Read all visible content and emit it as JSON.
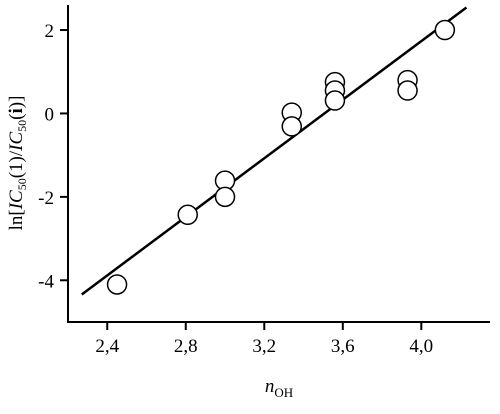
{
  "chart_data": {
    "type": "scatter",
    "x_label_parts": [
      "n",
      "OH"
    ],
    "y_label_parts": [
      "ln[",
      "IC",
      "50",
      "(1)/",
      "IC",
      "50",
      "(",
      "i",
      ")]"
    ],
    "series": [
      {
        "name": "data",
        "color": "#000000",
        "x": [
          2.45,
          2.81,
          3.0,
          3.0,
          3.34,
          3.34,
          3.56,
          3.56,
          3.56,
          3.93,
          3.93,
          4.12
        ],
        "values": [
          -4.1,
          -2.43,
          -1.61,
          -2.0,
          0.02,
          -0.31,
          0.75,
          0.55,
          0.31,
          0.8,
          0.55,
          2.0
        ]
      },
      {
        "name": "fit",
        "color": "#000000",
        "x": [
          2.27,
          4.23
        ],
        "values": [
          -4.34,
          2.54
        ]
      }
    ],
    "xlim": [
      2.2,
      4.35
    ],
    "ylim": [
      -5,
      2.6
    ],
    "xticks": [
      {
        "value": 2.4,
        "label": "2,4"
      },
      {
        "value": 2.8,
        "label": "2,8"
      },
      {
        "value": 3.2,
        "label": "3,2"
      },
      {
        "value": 3.6,
        "label": "3,6"
      },
      {
        "value": 4.0,
        "label": "4,0"
      }
    ],
    "yticks": [
      -4,
      -2,
      0,
      2
    ]
  }
}
